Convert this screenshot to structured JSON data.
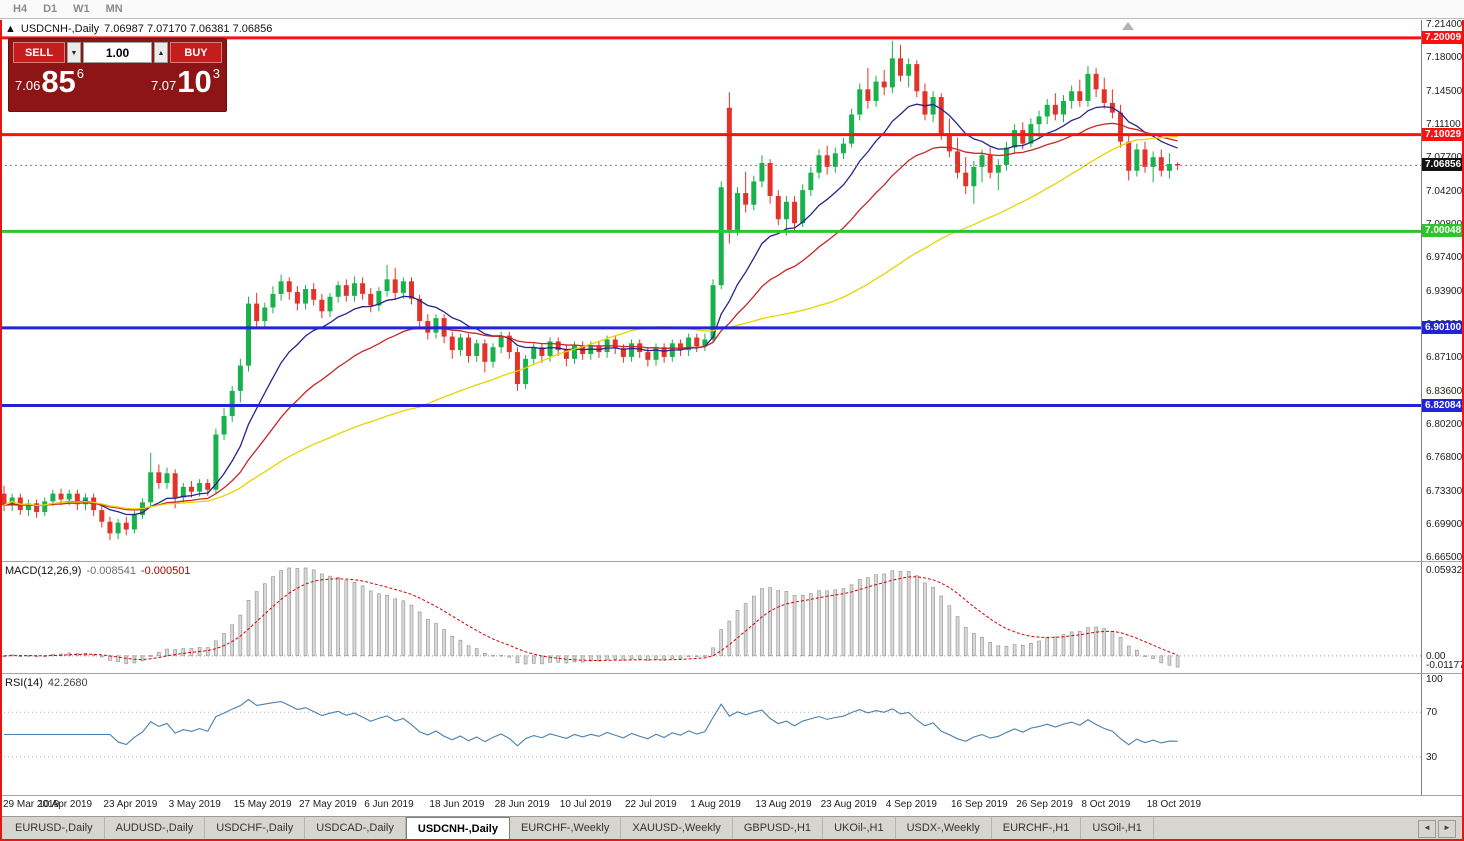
{
  "toolbar": {
    "timeframes": [
      "H4",
      "D1",
      "W1",
      "MN"
    ]
  },
  "chart_header": {
    "marker": "▲",
    "symbol_title": "USDCNH-,Daily",
    "ohlc": "7.06987 7.07170 7.06381 7.06856"
  },
  "trade_widget": {
    "sell_label": "SELL",
    "buy_label": "BUY",
    "volume": "1.00",
    "spin_down_icon": "▼",
    "spin_up_icon": "▲",
    "sell_price_small": "7.06",
    "sell_price_big": "85",
    "sell_price_sup": "6",
    "buy_price_small": "7.07",
    "buy_price_big": "10",
    "buy_price_sup": "3"
  },
  "price_axis_ticks": [
    "7.21400",
    "7.18000",
    "7.14500",
    "7.11100",
    "7.07700",
    "7.04200",
    "7.00800",
    "6.97400",
    "6.93900",
    "6.90500",
    "6.87100",
    "6.83600",
    "6.80200",
    "6.76800",
    "6.73300",
    "6.69900",
    "6.66500"
  ],
  "hlines": [
    {
      "price": 7.20009,
      "label": "7.20009",
      "color": "#fe1010",
      "thickness": 3
    },
    {
      "price": 7.10029,
      "label": "7.10029",
      "color": "#fe1010",
      "thickness": 3
    },
    {
      "price": 7.00048,
      "label": "7.00048",
      "color": "#2fc32f",
      "thickness": 3
    },
    {
      "price": 6.901,
      "label": "6.90100",
      "color": "#2222d8",
      "thickness": 3
    },
    {
      "price": 6.82084,
      "label": "6.82084",
      "color": "#2222d8",
      "thickness": 3
    }
  ],
  "current_price": {
    "value": 7.06856,
    "label": "7.06856",
    "tag_bg": "#121212"
  },
  "chart_data": {
    "type": "candlestick",
    "symbol": "USDCNH",
    "timeframe": "Daily",
    "price_range": {
      "top": 7.2185,
      "bottom": 6.6605
    },
    "x_labels": [
      "29 Mar 2019",
      "10 Apr 2019",
      "23 Apr 2019",
      "3 May 2019",
      "15 May 2019",
      "27 May 2019",
      "6 Jun 2019",
      "18 Jun 2019",
      "28 Jun 2019",
      "10 Jul 2019",
      "22 Jul 2019",
      "1 Aug 2019",
      "13 Aug 2019",
      "23 Aug 2019",
      "4 Sep 2019",
      "16 Sep 2019",
      "26 Sep 2019",
      "8 Oct 2019",
      "18 Oct 2019"
    ],
    "bars_per_label": 8,
    "moving_averages": [
      {
        "name": "fast",
        "method": "ema",
        "period": 12,
        "color": "#24248e"
      },
      {
        "name": "mid",
        "method": "ema",
        "period": 26,
        "color": "#c62828"
      },
      {
        "name": "slow",
        "method": "sma",
        "period": 52,
        "color": "#e8d400"
      }
    ],
    "candles": [
      [
        6.73,
        6.738,
        6.712,
        6.718
      ],
      [
        6.718,
        6.73,
        6.712,
        6.726
      ],
      [
        6.726,
        6.73,
        6.708,
        6.713
      ],
      [
        6.713,
        6.724,
        6.707,
        6.72
      ],
      [
        6.72,
        6.724,
        6.705,
        6.711
      ],
      [
        6.711,
        6.726,
        6.707,
        6.722
      ],
      [
        6.722,
        6.734,
        6.717,
        6.73
      ],
      [
        6.73,
        6.735,
        6.718,
        6.724
      ],
      [
        6.724,
        6.734,
        6.718,
        6.73
      ],
      [
        6.73,
        6.734,
        6.713,
        6.719
      ],
      [
        6.719,
        6.73,
        6.713,
        6.726
      ],
      [
        6.726,
        6.73,
        6.707,
        6.713
      ],
      [
        6.713,
        6.718,
        6.695,
        6.701
      ],
      [
        6.701,
        6.706,
        6.682,
        6.689
      ],
      [
        6.689,
        6.704,
        6.683,
        6.7
      ],
      [
        6.7,
        6.706,
        6.687,
        6.693
      ],
      [
        6.693,
        6.712,
        6.689,
        6.708
      ],
      [
        6.708,
        6.725,
        6.704,
        6.721
      ],
      [
        6.721,
        6.772,
        6.717,
        6.752
      ],
      [
        6.752,
        6.76,
        6.735,
        6.741
      ],
      [
        6.741,
        6.757,
        6.735,
        6.751
      ],
      [
        6.751,
        6.755,
        6.715,
        6.726
      ],
      [
        6.726,
        6.741,
        6.72,
        6.737
      ],
      [
        6.737,
        6.743,
        6.726,
        6.732
      ],
      [
        6.732,
        6.745,
        6.727,
        6.741
      ],
      [
        6.741,
        6.745,
        6.728,
        6.734
      ],
      [
        6.734,
        6.797,
        6.73,
        6.791
      ],
      [
        6.791,
        6.818,
        6.785,
        6.81
      ],
      [
        6.81,
        6.841,
        6.804,
        6.836
      ],
      [
        6.836,
        6.869,
        6.824,
        6.862
      ],
      [
        6.862,
        6.933,
        6.856,
        6.926
      ],
      [
        6.926,
        6.937,
        6.9,
        6.908
      ],
      [
        6.908,
        6.927,
        6.902,
        6.922
      ],
      [
        6.922,
        6.944,
        6.916,
        6.936
      ],
      [
        6.936,
        6.956,
        6.929,
        6.949
      ],
      [
        6.949,
        6.953,
        6.93,
        6.938
      ],
      [
        6.938,
        6.944,
        6.919,
        6.926
      ],
      [
        6.926,
        6.945,
        6.92,
        6.941
      ],
      [
        6.941,
        6.947,
        6.924,
        6.93
      ],
      [
        6.93,
        6.936,
        6.911,
        6.918
      ],
      [
        6.918,
        6.937,
        6.912,
        6.933
      ],
      [
        6.933,
        6.949,
        6.927,
        6.945
      ],
      [
        6.945,
        6.951,
        6.928,
        6.934
      ],
      [
        6.934,
        6.954,
        6.928,
        6.947
      ],
      [
        6.947,
        6.953,
        6.93,
        6.936
      ],
      [
        6.936,
        6.942,
        6.917,
        6.924
      ],
      [
        6.924,
        6.943,
        6.918,
        6.939
      ],
      [
        6.939,
        6.966,
        6.933,
        6.951
      ],
      [
        6.951,
        6.963,
        6.93,
        6.937
      ],
      [
        6.937,
        6.953,
        6.931,
        6.949
      ],
      [
        6.949,
        6.953,
        6.925,
        6.931
      ],
      [
        6.931,
        6.935,
        6.901,
        6.908
      ],
      [
        6.908,
        6.915,
        6.889,
        6.896
      ],
      [
        6.896,
        6.915,
        6.89,
        6.911
      ],
      [
        6.911,
        6.915,
        6.885,
        6.892
      ],
      [
        6.892,
        6.897,
        6.869,
        6.878
      ],
      [
        6.878,
        6.895,
        6.872,
        6.891
      ],
      [
        6.891,
        6.895,
        6.865,
        6.872
      ],
      [
        6.872,
        6.889,
        6.866,
        6.885
      ],
      [
        6.885,
        6.889,
        6.855,
        6.866
      ],
      [
        6.866,
        6.885,
        6.86,
        6.881
      ],
      [
        6.881,
        6.897,
        6.875,
        6.893
      ],
      [
        6.893,
        6.897,
        6.869,
        6.876
      ],
      [
        6.876,
        6.881,
        6.836,
        6.843
      ],
      [
        6.843,
        6.873,
        6.838,
        6.869
      ],
      [
        6.869,
        6.885,
        6.863,
        6.881
      ],
      [
        6.881,
        6.885,
        6.865,
        6.872
      ],
      [
        6.872,
        6.891,
        6.866,
        6.887
      ],
      [
        6.887,
        6.891,
        6.872,
        6.878
      ],
      [
        6.878,
        6.883,
        6.861,
        6.869
      ],
      [
        6.869,
        6.887,
        6.864,
        6.883
      ],
      [
        6.883,
        6.887,
        6.868,
        6.874
      ],
      [
        6.874,
        6.887,
        6.868,
        6.883
      ],
      [
        6.883,
        6.887,
        6.87,
        6.876
      ],
      [
        6.876,
        6.893,
        6.87,
        6.889
      ],
      [
        6.889,
        6.893,
        6.874,
        6.88
      ],
      [
        6.88,
        6.884,
        6.865,
        6.871
      ],
      [
        6.871,
        6.889,
        6.866,
        6.885
      ],
      [
        6.885,
        6.889,
        6.87,
        6.876
      ],
      [
        6.876,
        6.881,
        6.861,
        6.868
      ],
      [
        6.868,
        6.885,
        6.862,
        6.881
      ],
      [
        6.881,
        6.885,
        6.865,
        6.871
      ],
      [
        6.871,
        6.889,
        6.866,
        6.885
      ],
      [
        6.885,
        6.889,
        6.872,
        6.878
      ],
      [
        6.878,
        6.895,
        6.872,
        6.891
      ],
      [
        6.891,
        6.895,
        6.876,
        6.882
      ],
      [
        6.882,
        6.895,
        6.877,
        6.889
      ],
      [
        6.889,
        6.951,
        6.885,
        6.945
      ],
      [
        6.945,
        7.052,
        6.941,
        7.046
      ],
      [
        7.128,
        7.144,
        6.988,
        7.002
      ],
      [
        7.002,
        7.046,
        6.996,
        7.04
      ],
      [
        7.04,
        7.062,
        7.02,
        7.028
      ],
      [
        7.028,
        7.058,
        7.022,
        7.052
      ],
      [
        7.052,
        7.079,
        7.046,
        7.071
      ],
      [
        7.071,
        7.075,
        7.029,
        7.037
      ],
      [
        7.037,
        7.043,
        7.007,
        7.013
      ],
      [
        7.013,
        7.037,
        6.996,
        7.031
      ],
      [
        7.031,
        7.037,
        7.001,
        7.009
      ],
      [
        7.009,
        7.049,
        7.005,
        7.043
      ],
      [
        7.043,
        7.067,
        7.037,
        7.061
      ],
      [
        7.061,
        7.085,
        7.055,
        7.079
      ],
      [
        7.079,
        7.089,
        7.059,
        7.067
      ],
      [
        7.067,
        7.087,
        7.061,
        7.081
      ],
      [
        7.081,
        7.097,
        7.075,
        7.091
      ],
      [
        7.091,
        7.127,
        7.087,
        7.121
      ],
      [
        7.121,
        7.153,
        7.115,
        7.147
      ],
      [
        7.147,
        7.169,
        7.127,
        7.135
      ],
      [
        7.135,
        7.161,
        7.129,
        7.155
      ],
      [
        7.155,
        7.167,
        7.141,
        7.149
      ],
      [
        7.149,
        7.197,
        7.143,
        7.179
      ],
      [
        7.179,
        7.193,
        7.155,
        7.161
      ],
      [
        7.161,
        7.179,
        7.149,
        7.173
      ],
      [
        7.173,
        7.177,
        7.139,
        7.145
      ],
      [
        7.145,
        7.153,
        7.115,
        7.121
      ],
      [
        7.121,
        7.145,
        7.113,
        7.139
      ],
      [
        7.139,
        7.143,
        7.095,
        7.101
      ],
      [
        7.101,
        7.117,
        7.077,
        7.083
      ],
      [
        7.083,
        7.097,
        7.055,
        7.061
      ],
      [
        7.061,
        7.077,
        7.039,
        7.047
      ],
      [
        7.047,
        7.073,
        7.029,
        7.067
      ],
      [
        7.067,
        7.085,
        7.051,
        7.079
      ],
      [
        7.079,
        7.087,
        7.055,
        7.061
      ],
      [
        7.061,
        7.075,
        7.043,
        7.069
      ],
      [
        7.069,
        7.093,
        7.063,
        7.087
      ],
      [
        7.087,
        7.111,
        7.081,
        7.105
      ],
      [
        7.105,
        7.113,
        7.085,
        7.091
      ],
      [
        7.091,
        7.117,
        7.087,
        7.111
      ],
      [
        7.111,
        7.125,
        7.097,
        7.119
      ],
      [
        7.119,
        7.137,
        7.111,
        7.131
      ],
      [
        7.131,
        7.143,
        7.115,
        7.121
      ],
      [
        7.121,
        7.141,
        7.113,
        7.135
      ],
      [
        7.135,
        7.151,
        7.127,
        7.145
      ],
      [
        7.145,
        7.157,
        7.129,
        7.135
      ],
      [
        7.135,
        7.171,
        7.129,
        7.163
      ],
      [
        7.163,
        7.169,
        7.139,
        7.147
      ],
      [
        7.147,
        7.159,
        7.127,
        7.133
      ],
      [
        7.133,
        7.147,
        7.117,
        7.123
      ],
      [
        7.123,
        7.131,
        7.087,
        7.093
      ],
      [
        7.093,
        7.101,
        7.053,
        7.063
      ],
      [
        7.063,
        7.091,
        7.057,
        7.085
      ],
      [
        7.085,
        7.093,
        7.061,
        7.067
      ],
      [
        7.067,
        7.083,
        7.051,
        7.077
      ],
      [
        7.077,
        7.085,
        7.057,
        7.063
      ],
      [
        7.063,
        7.081,
        7.055,
        7.07
      ],
      [
        7.07,
        7.0717,
        7.0638,
        7.0686
      ]
    ]
  },
  "macd_panel": {
    "label": "MACD(12,26,9)",
    "value_main": "-0.008541",
    "value_signal": "-0.000501",
    "axis_max": "0.059323",
    "axis_zero": "0.00",
    "axis_min": "-0.011773",
    "fast": 12,
    "slow": 26,
    "signal": 9,
    "histogram_fill": "#d8d8d8",
    "histogram_border": "#8f8f8f",
    "signal_color": "#d40000"
  },
  "rsi_panel": {
    "label": "RSI(14)",
    "value": "42.2680",
    "period": 14,
    "axis_labels": [
      "100",
      "70",
      "30"
    ],
    "levels": [
      70,
      30
    ],
    "line_color": "#4a7fae"
  },
  "tab_bar": {
    "items": [
      "EURUSD-,Daily",
      "AUDUSD-,Daily",
      "USDCHF-,Daily",
      "USDCAD-,Daily",
      "USDCNH-,Daily",
      "EURCHF-,Weekly",
      "XAUUSD-,Weekly",
      "GBPUSD-,H1",
      "UKOil-,H1",
      "USDX-,Weekly",
      "EURCHF-,H1",
      "USOil-,H1"
    ],
    "active_index": 4,
    "scroll_left_icon": "◄",
    "scroll_right_icon": "►"
  },
  "colors": {
    "candle_up": "#18b14c",
    "candle_down": "#e53229",
    "current_price_line": "#7d7d7d",
    "frame": "#e81515"
  }
}
